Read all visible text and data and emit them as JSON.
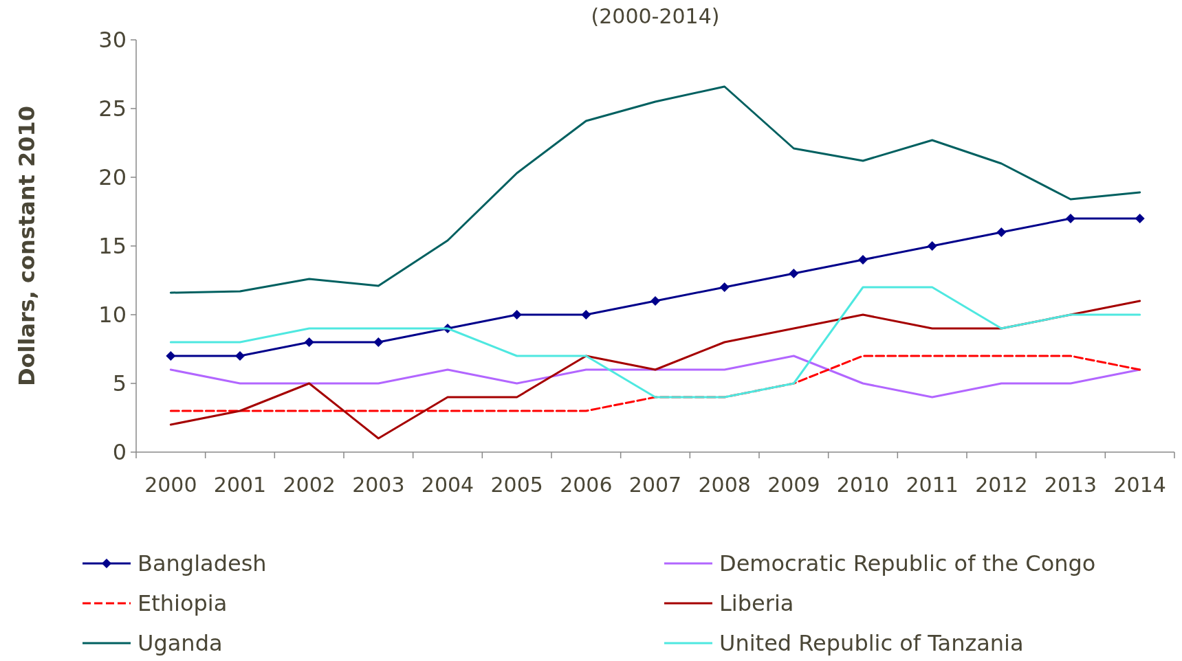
{
  "chart_data": {
    "type": "line",
    "title": "(2000-2014)",
    "ylabel": "Dollars, constant 2010",
    "categories": [
      "2000",
      "2001",
      "2002",
      "2003",
      "2004",
      "2005",
      "2006",
      "2007",
      "2008",
      "2009",
      "2010",
      "2011",
      "2012",
      "2013",
      "2014"
    ],
    "ylim": [
      0,
      30
    ],
    "yticks": [
      0,
      5,
      10,
      15,
      20,
      25,
      30
    ],
    "grid": false,
    "legend": "bottom",
    "series": [
      {
        "name": "Bangladesh",
        "color": "#00008b",
        "marker": "diamond",
        "line_style": "solid",
        "values": [
          7,
          7,
          8,
          8,
          9,
          10,
          10,
          11,
          12,
          13,
          14,
          15,
          16,
          17,
          17
        ]
      },
      {
        "name": "Democratic Republic of the Congo",
        "color": "#b266ff",
        "line_style": "solid",
        "values": [
          6,
          5,
          5,
          5,
          6,
          5,
          6,
          6,
          6,
          7,
          5,
          4,
          5,
          5,
          6
        ]
      },
      {
        "name": "Ethiopia",
        "color": "#ff0000",
        "line_style": "dashed",
        "values": [
          3,
          3,
          3,
          3,
          3,
          3,
          3,
          4,
          4,
          5,
          7,
          7,
          7,
          7,
          6
        ]
      },
      {
        "name": "Liberia",
        "color": "#a50000",
        "line_style": "solid",
        "values": [
          2,
          3,
          5,
          1,
          4,
          4,
          7,
          6,
          8,
          9,
          10,
          9,
          9,
          10,
          11
        ]
      },
      {
        "name": "Uganda",
        "color": "#006060",
        "line_style": "solid",
        "values": [
          11.6,
          11.7,
          12.6,
          12.1,
          15.4,
          20.3,
          24.1,
          25.5,
          26.6,
          22.1,
          21.2,
          22.7,
          21.0,
          18.4,
          18.9
        ]
      },
      {
        "name": "United Republic of Tanzania",
        "color": "#4ee8e0",
        "line_style": "solid",
        "values": [
          8,
          8,
          9,
          9,
          9,
          7,
          7,
          4,
          4,
          5,
          12,
          12,
          9,
          10,
          10
        ]
      }
    ]
  }
}
